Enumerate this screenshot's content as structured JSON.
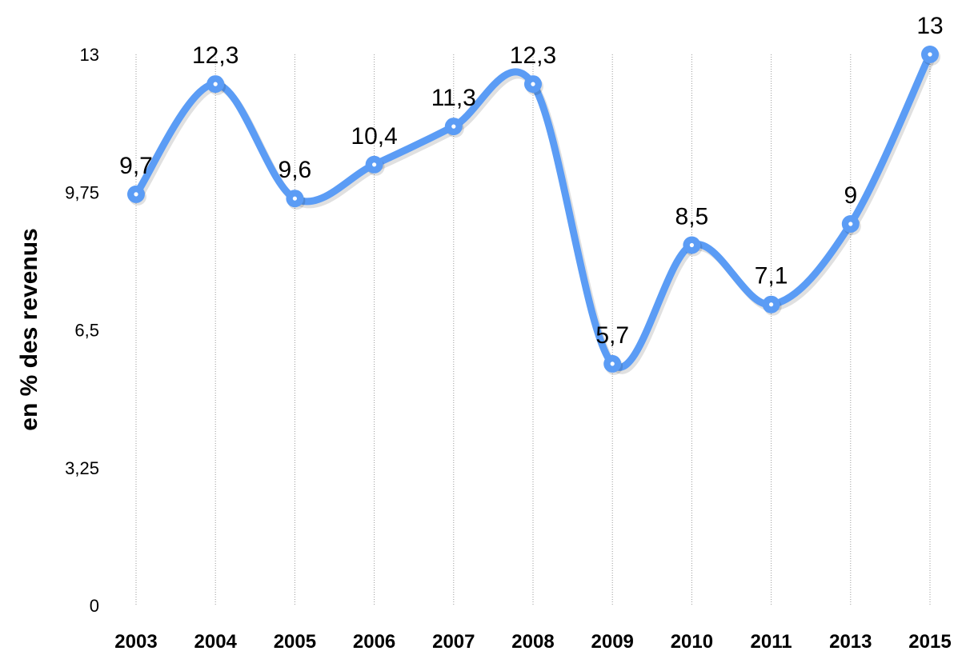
{
  "chart_data": {
    "type": "line",
    "title": "",
    "xlabel": "",
    "ylabel": "en % des revenus",
    "categories": [
      "2003",
      "2004",
      "2005",
      "2006",
      "2007",
      "2008",
      "2009",
      "2010",
      "2011",
      "2013",
      "2015"
    ],
    "series": [
      {
        "values": [
          9.7,
          12.3,
          9.6,
          10.4,
          11.3,
          12.3,
          5.7,
          8.5,
          7.1,
          9,
          13
        ],
        "labels": [
          "9,7",
          "12,3",
          "9,6",
          "10,4",
          "11,3",
          "12,3",
          "5,7",
          "8,5",
          "7,1",
          "9",
          "13"
        ],
        "color": "#5b9cf5",
        "smooth": true
      }
    ],
    "ylim": [
      0,
      13
    ],
    "yticks": [
      0,
      3.25,
      6.5,
      9.75,
      13
    ],
    "ytick_labels": [
      "0",
      "3,25",
      "6,5",
      "9,75",
      "13"
    ],
    "grid": "vertical",
    "legend": "none"
  }
}
